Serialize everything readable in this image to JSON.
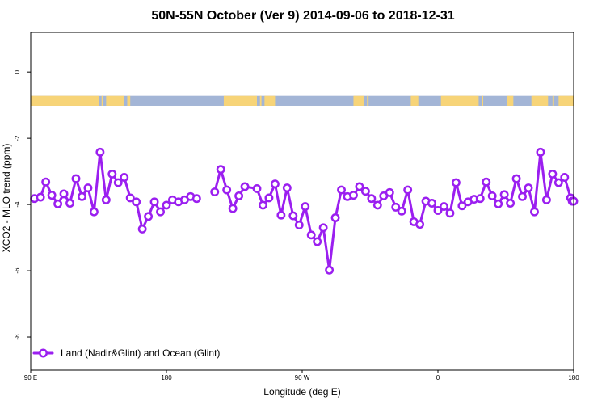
{
  "chart_data": {
    "type": "line",
    "title": "50N-55N October (Ver 9)   2014-09-06 to 2018-12-31",
    "xlabel": "Longitude (deg E)",
    "ylabel": "XCO2 - MLO trend (ppm)",
    "xlim": [
      90,
      450
    ],
    "ylim": [
      -9.0,
      1.2
    ],
    "x_ticks": [
      {
        "value": 90,
        "label": "90 E"
      },
      {
        "value": 180,
        "label": "180"
      },
      {
        "value": 270,
        "label": "90 W"
      },
      {
        "value": 360,
        "label": "0"
      },
      {
        "value": 450,
        "label": "180"
      }
    ],
    "y_ticks": [
      {
        "value": 0,
        "label": "0"
      },
      {
        "value": -2,
        "label": "-2"
      },
      {
        "value": -4,
        "label": "-4"
      },
      {
        "value": -6,
        "label": "-6"
      },
      {
        "value": -8,
        "label": "-8"
      }
    ],
    "grid": false,
    "legend_position": "bottom-left",
    "land_ocean_band": {
      "y_top": -0.72,
      "y_bottom": -1.02,
      "ocean_color": "#a3b5d6",
      "land_color": "#f7d478",
      "land_segments": [
        [
          90,
          135
        ],
        [
          137,
          138
        ],
        [
          140,
          152
        ],
        [
          154,
          156
        ],
        [
          218,
          240
        ],
        [
          242,
          243
        ],
        [
          245,
          252
        ],
        [
          304,
          311
        ],
        [
          313,
          314
        ],
        [
          342,
          347
        ],
        [
          362,
          387
        ],
        [
          389,
          390
        ],
        [
          406,
          410
        ],
        [
          422,
          433
        ],
        [
          436,
          437
        ],
        [
          440,
          450
        ]
      ]
    },
    "series": [
      {
        "name": "Land (Nadir&Glint) and Ocean (Glint)",
        "color": "#9b1ff0",
        "segments": [
          {
            "x": [
              92.5,
              96.5,
              100,
              104,
              108,
              112,
              116,
              120,
              124,
              128,
              132,
              136,
              140,
              144,
              148,
              152,
              156,
              160,
              164,
              168,
              172,
              176,
              180,
              184,
              188,
              192,
              196,
              200
            ],
            "y": [
              -3.82,
              -3.78,
              -3.32,
              -3.72,
              -3.98,
              -3.68,
              -3.96,
              -3.22,
              -3.76,
              -3.5,
              -4.22,
              -2.42,
              -3.86,
              -3.08,
              -3.34,
              -3.18,
              -3.8,
              -3.92,
              -4.74,
              -4.36,
              -3.92,
              -4.22,
              -4.02,
              -3.86,
              -3.92,
              -3.86,
              -3.76,
              -3.82
            ]
          },
          {
            "x": [
              212,
              216,
              220,
              224,
              228,
              232,
              240,
              244,
              248,
              252,
              256,
              260,
              264,
              268,
              272,
              276,
              280,
              284,
              288,
              292,
              296,
              300,
              304,
              308,
              312,
              316,
              320,
              324,
              328,
              332,
              336,
              340,
              344,
              348,
              352,
              356,
              360,
              364,
              368,
              372,
              376,
              380,
              384,
              388,
              392,
              396,
              400,
              404,
              408,
              412,
              416,
              420,
              424,
              428,
              432,
              436,
              440,
              444,
              448
            ],
            "y": [
              -3.62,
              -2.94,
              -3.56,
              -4.12,
              -3.74,
              -3.46,
              -3.52,
              -4.02,
              -3.8,
              -3.38,
              -4.32,
              -3.5,
              -4.34,
              -4.62,
              -4.06,
              -4.92,
              -5.12,
              -4.7,
              -5.98,
              -4.4,
              -3.56,
              -3.76,
              -3.72,
              -3.46,
              -3.6,
              -3.82,
              -4.02,
              -3.74,
              -3.64,
              -4.08,
              -4.2,
              -3.56,
              -4.52,
              -4.6,
              -3.9,
              -3.96,
              -4.18,
              -4.06,
              -4.26,
              -3.34,
              -4.04,
              -3.92,
              -3.84,
              -3.82,
              -3.32,
              -3.74,
              -3.98,
              -3.7,
              -3.96,
              -3.22,
              -3.76,
              -3.5,
              -4.22,
              -2.42,
              -3.86,
              -3.08,
              -3.34,
              -3.18,
              -3.8
            ]
          },
          {
            "x": [
              449,
              450
            ],
            "y": [
              -3.9,
              -3.9
            ]
          }
        ]
      }
    ]
  }
}
